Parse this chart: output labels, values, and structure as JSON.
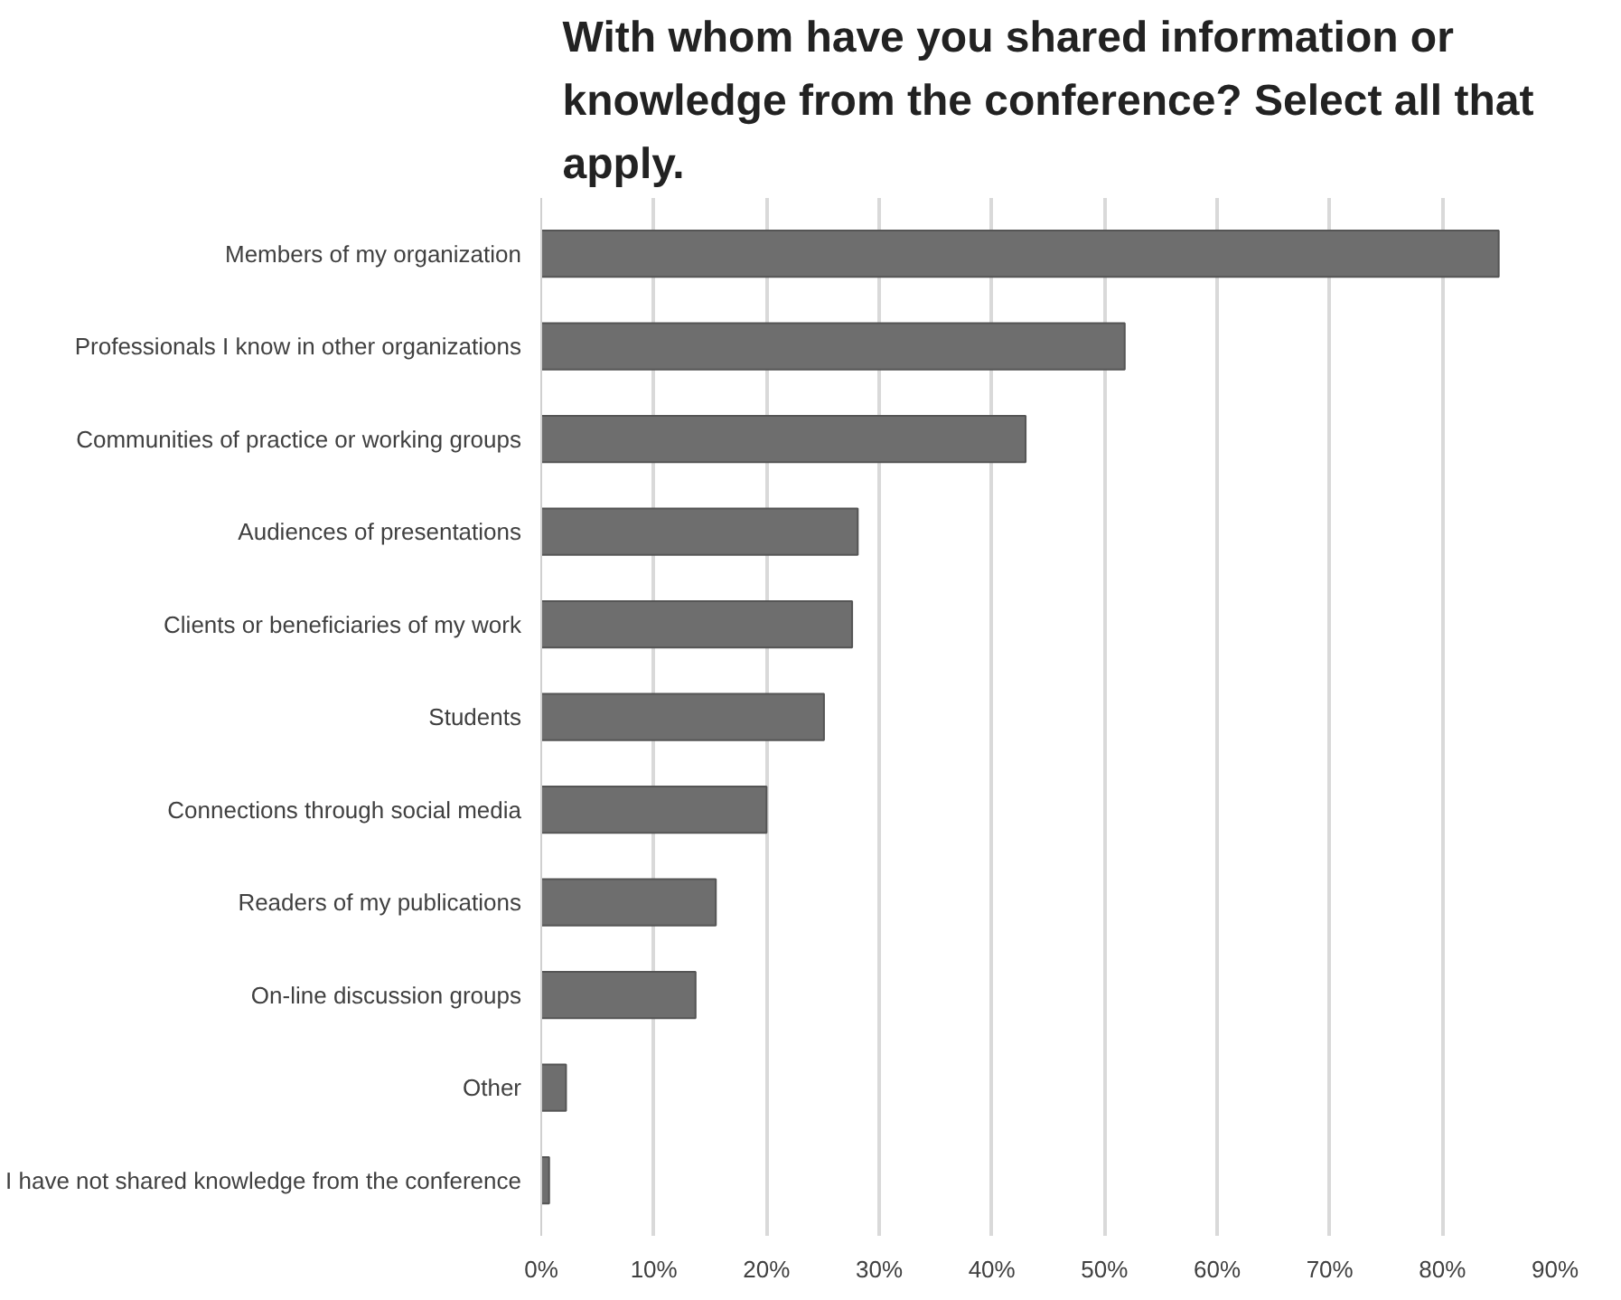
{
  "chart_data": {
    "type": "bar",
    "orientation": "horizontal",
    "title": "With whom have you shared information or knowledge from the conference? Select all that apply.",
    "categories": [
      "Members of my organization",
      "Professionals I know in other organizations",
      "Communities of practice or working groups",
      "Audiences of presentations",
      "Clients or beneficiaries of my work",
      "Students",
      "Connections through social media",
      "Readers of my publications",
      "On-line discussion groups",
      "Other",
      "I have not shared knowledge from the conference"
    ],
    "values": [
      85,
      51.8,
      43,
      28.1,
      27.6,
      25.1,
      20,
      15.5,
      13.7,
      2.2,
      0.7
    ],
    "color": "#6e6e6e",
    "xlim": [
      0,
      90
    ],
    "xticks": [
      {
        "value": 0,
        "label": "0%"
      },
      {
        "value": 10,
        "label": "10%"
      },
      {
        "value": 20,
        "label": "20%"
      },
      {
        "value": 30,
        "label": "30%"
      },
      {
        "value": 40,
        "label": "40%"
      },
      {
        "value": 50,
        "label": "50%"
      },
      {
        "value": 60,
        "label": "60%"
      },
      {
        "value": 70,
        "label": "70%"
      },
      {
        "value": 80,
        "label": "80%"
      },
      {
        "value": 90,
        "label": "90%"
      }
    ],
    "grid": "x"
  }
}
